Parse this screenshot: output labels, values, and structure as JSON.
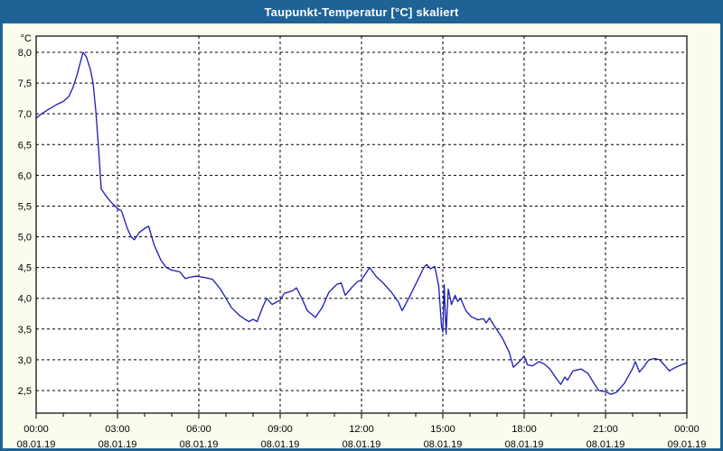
{
  "window": {
    "title": "Taupunkt-Temperatur [°C] skaliert"
  },
  "colors": {
    "titlebar_bg": "#1e6296",
    "window_border": "#1e6296",
    "title_text": "#ffffff",
    "client_bg": "#fbfcee",
    "plot_bg": "#ffffff",
    "line": "#1a1ab8",
    "grid": "#000000",
    "axis": "#000000",
    "tick_text": "#000000"
  },
  "chart_data": {
    "type": "line",
    "title": "Taupunkt-Temperatur [°C] skaliert",
    "ylabel": "°C",
    "xlabel": "",
    "grid": "dashed",
    "legend": "none",
    "xlim_hours": [
      0,
      24
    ],
    "x_minor_tick_hours": 1,
    "x_major_tick_hours": 3,
    "ylim": [
      2.14,
      8.26
    ],
    "yticks": {
      "values": [
        8.0,
        7.5,
        7.0,
        6.5,
        6.0,
        5.5,
        5.0,
        4.5,
        4.0,
        3.5,
        3.0,
        2.5
      ],
      "labels": [
        "8,0",
        "7,5",
        "7,0",
        "6,5",
        "6,0",
        "5,5",
        "5,0",
        "4,5",
        "4,0",
        "3,5",
        "3,0",
        "2,5"
      ]
    },
    "xticks": [
      {
        "hour": 0,
        "time": "00:00",
        "date": "08.01.19"
      },
      {
        "hour": 3,
        "time": "03:00",
        "date": "08.01.19"
      },
      {
        "hour": 6,
        "time": "06:00",
        "date": "08.01.19"
      },
      {
        "hour": 9,
        "time": "09:00",
        "date": "08.01.19"
      },
      {
        "hour": 12,
        "time": "12:00",
        "date": "08.01.19"
      },
      {
        "hour": 15,
        "time": "15:00",
        "date": "08.01.19"
      },
      {
        "hour": 18,
        "time": "18:00",
        "date": "08.01.19"
      },
      {
        "hour": 21,
        "time": "21:00",
        "date": "08.01.19"
      },
      {
        "hour": 24,
        "time": "00:00",
        "date": "09.01.19"
      }
    ],
    "series": [
      {
        "name": "Taupunkt-Temperatur",
        "points": [
          [
            0.0,
            6.93
          ],
          [
            0.2,
            7.0
          ],
          [
            0.45,
            7.07
          ],
          [
            0.75,
            7.15
          ],
          [
            1.0,
            7.2
          ],
          [
            1.2,
            7.28
          ],
          [
            1.35,
            7.42
          ],
          [
            1.5,
            7.62
          ],
          [
            1.62,
            7.82
          ],
          [
            1.73,
            8.0
          ],
          [
            1.85,
            7.93
          ],
          [
            2.0,
            7.72
          ],
          [
            2.1,
            7.5
          ],
          [
            2.2,
            7.05
          ],
          [
            2.3,
            6.45
          ],
          [
            2.4,
            5.78
          ],
          [
            2.55,
            5.68
          ],
          [
            2.75,
            5.57
          ],
          [
            3.0,
            5.46
          ],
          [
            3.15,
            5.42
          ],
          [
            3.35,
            5.15
          ],
          [
            3.5,
            5.0
          ],
          [
            3.62,
            4.95
          ],
          [
            3.8,
            5.07
          ],
          [
            4.05,
            5.15
          ],
          [
            4.15,
            5.17
          ],
          [
            4.35,
            4.87
          ],
          [
            4.6,
            4.62
          ],
          [
            4.8,
            4.5
          ],
          [
            5.0,
            4.46
          ],
          [
            5.3,
            4.43
          ],
          [
            5.5,
            4.32
          ],
          [
            5.65,
            4.34
          ],
          [
            5.9,
            4.36
          ],
          [
            6.2,
            4.34
          ],
          [
            6.5,
            4.31
          ],
          [
            6.8,
            4.15
          ],
          [
            7.0,
            4.0
          ],
          [
            7.2,
            3.85
          ],
          [
            7.5,
            3.72
          ],
          [
            7.7,
            3.66
          ],
          [
            7.85,
            3.62
          ],
          [
            8.0,
            3.66
          ],
          [
            8.15,
            3.62
          ],
          [
            8.35,
            3.85
          ],
          [
            8.5,
            4.0
          ],
          [
            8.7,
            3.9
          ],
          [
            9.0,
            3.97
          ],
          [
            9.15,
            4.08
          ],
          [
            9.45,
            4.12
          ],
          [
            9.6,
            4.17
          ],
          [
            9.8,
            4.0
          ],
          [
            10.0,
            3.8
          ],
          [
            10.3,
            3.69
          ],
          [
            10.55,
            3.85
          ],
          [
            10.8,
            4.1
          ],
          [
            11.1,
            4.23
          ],
          [
            11.25,
            4.25
          ],
          [
            11.4,
            4.05
          ],
          [
            11.65,
            4.18
          ],
          [
            11.85,
            4.27
          ],
          [
            12.0,
            4.3
          ],
          [
            12.3,
            4.5
          ],
          [
            12.55,
            4.35
          ],
          [
            12.8,
            4.25
          ],
          [
            13.1,
            4.1
          ],
          [
            13.35,
            3.95
          ],
          [
            13.5,
            3.8
          ],
          [
            13.8,
            4.05
          ],
          [
            14.1,
            4.32
          ],
          [
            14.3,
            4.5
          ],
          [
            14.4,
            4.55
          ],
          [
            14.55,
            4.48
          ],
          [
            14.7,
            4.52
          ],
          [
            14.85,
            4.2
          ],
          [
            14.95,
            3.55
          ],
          [
            15.0,
            3.45
          ],
          [
            15.05,
            4.22
          ],
          [
            15.12,
            3.42
          ],
          [
            15.2,
            4.15
          ],
          [
            15.32,
            3.9
          ],
          [
            15.45,
            4.05
          ],
          [
            15.55,
            3.95
          ],
          [
            15.65,
            4.0
          ],
          [
            15.85,
            3.8
          ],
          [
            16.05,
            3.7
          ],
          [
            16.3,
            3.65
          ],
          [
            16.5,
            3.67
          ],
          [
            16.6,
            3.6
          ],
          [
            16.72,
            3.68
          ],
          [
            16.9,
            3.55
          ],
          [
            17.2,
            3.35
          ],
          [
            17.45,
            3.12
          ],
          [
            17.6,
            2.88
          ],
          [
            17.8,
            2.96
          ],
          [
            18.0,
            3.06
          ],
          [
            18.12,
            2.92
          ],
          [
            18.3,
            2.9
          ],
          [
            18.55,
            2.97
          ],
          [
            18.75,
            2.93
          ],
          [
            18.95,
            2.85
          ],
          [
            19.15,
            2.72
          ],
          [
            19.35,
            2.6
          ],
          [
            19.5,
            2.72
          ],
          [
            19.6,
            2.67
          ],
          [
            19.8,
            2.82
          ],
          [
            20.1,
            2.85
          ],
          [
            20.35,
            2.78
          ],
          [
            20.6,
            2.6
          ],
          [
            20.75,
            2.5
          ],
          [
            21.0,
            2.48
          ],
          [
            21.2,
            2.44
          ],
          [
            21.4,
            2.47
          ],
          [
            21.7,
            2.62
          ],
          [
            22.0,
            2.86
          ],
          [
            22.1,
            2.97
          ],
          [
            22.25,
            2.8
          ],
          [
            22.4,
            2.88
          ],
          [
            22.6,
            3.0
          ],
          [
            22.8,
            3.02
          ],
          [
            23.0,
            3.0
          ],
          [
            23.2,
            2.9
          ],
          [
            23.35,
            2.82
          ],
          [
            23.55,
            2.87
          ],
          [
            23.8,
            2.92
          ],
          [
            24.0,
            2.95
          ]
        ]
      }
    ]
  }
}
